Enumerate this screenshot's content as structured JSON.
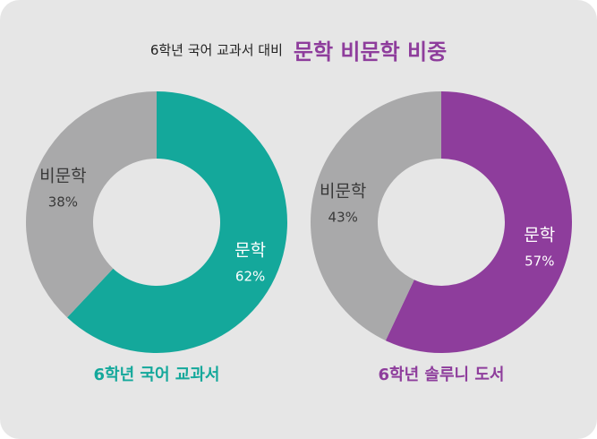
{
  "title": {
    "subtitle": "6학년 국어 교과서 대비",
    "main": "문학 비문학 비중"
  },
  "chart_data": [
    {
      "type": "pie",
      "title": "6학년 국어 교과서",
      "categories": [
        "문학",
        "비문학"
      ],
      "values": [
        62,
        38
      ],
      "value_labels": [
        "62%",
        "38%"
      ],
      "colors": [
        "#14a89b",
        "#a9a9aa"
      ],
      "donut": true
    },
    {
      "type": "pie",
      "title": "6학년 솔루니 도서",
      "categories": [
        "문학",
        "비문학"
      ],
      "values": [
        57,
        43
      ],
      "value_labels": [
        "57%",
        "43%"
      ],
      "colors": [
        "#8e3d9c",
        "#a9a9aa"
      ],
      "donut": true
    }
  ],
  "colors": {
    "background": "#e6e6e6",
    "accent_purple": "#8e3d9c",
    "accent_teal": "#14a89b",
    "gray": "#a9a9aa"
  }
}
